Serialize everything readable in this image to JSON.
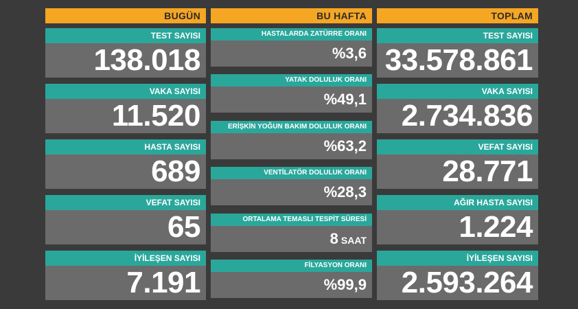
{
  "bugun": {
    "header": "BUGÜN",
    "items": [
      {
        "label": "TEST SAYISI",
        "value": "138.018"
      },
      {
        "label": "VAKA SAYISI",
        "value": "11.520"
      },
      {
        "label": "HASTA SAYISI",
        "value": "689"
      },
      {
        "label": "VEFAT SAYISI",
        "value": "65"
      },
      {
        "label": "İYİLEŞEN SAYISI",
        "value": "7.191"
      }
    ]
  },
  "bu_hafta": {
    "header": "BU HAFTA",
    "items": [
      {
        "label": "HASTALARDA ZATÜRRE ORANI",
        "value": "%3,6"
      },
      {
        "label": "YATAK DOLULUK ORANI",
        "value": "%49,1"
      },
      {
        "label": "ERİŞKİN YOĞUN BAKIM DOLULUK ORANI",
        "value": "%63,2"
      },
      {
        "label": "VENTİLATÖR DOLULUK ORANI",
        "value": "%28,3"
      },
      {
        "label": "ORTALAMA TEMASLI TESPİT SÜRESİ",
        "value": "8",
        "unit": "SAAT"
      },
      {
        "label": "FİLYASYON ORANI",
        "value": "%99,9"
      }
    ]
  },
  "toplam": {
    "header": "TOPLAM",
    "items": [
      {
        "label": "TEST SAYISI",
        "value": "33.578.861"
      },
      {
        "label": "VAKA SAYISI",
        "value": "2.734.836"
      },
      {
        "label": "VEFAT SAYISI",
        "value": "28.771"
      },
      {
        "label": "AĞIR HASTA SAYISI",
        "value": "1.224"
      },
      {
        "label": "İYİLEŞEN SAYISI",
        "value": "2.593.264"
      }
    ]
  },
  "colors": {
    "background": "#3a3a3a",
    "header": "#f5a623",
    "label_bar": "#2aa79b",
    "value_box": "#6b6b6b"
  }
}
